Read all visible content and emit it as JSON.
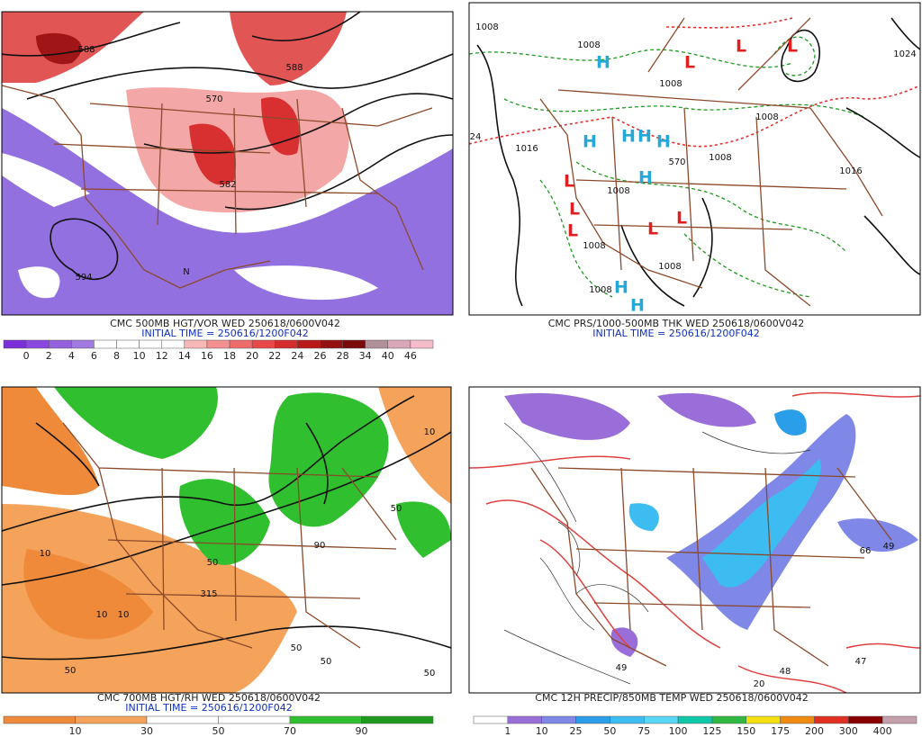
{
  "panels": [
    {
      "caption": "CMC 500MB HGT/VOR WED 250618/0600V042",
      "initial_time": "INITIAL TIME = 250616/1200F042",
      "colorbar": {
        "labels": [
          0,
          2,
          4,
          6,
          8,
          10,
          12,
          14,
          16,
          18,
          20,
          22,
          24,
          26,
          28,
          34,
          40,
          46
        ],
        "colors": [
          "#7b2fd9",
          "#8a48e0",
          "#9560dd",
          "#a079e0",
          "#ffffff",
          "#ffffff",
          "#ffffff",
          "#ffffff",
          "#f9b8b8",
          "#f49090",
          "#ee6c6c",
          "#e84848",
          "#d42c2c",
          "#b81818",
          "#951010",
          "#7a0a0a",
          "#b09098",
          "#d8a8b8",
          "#f5bccb"
        ]
      },
      "map_labels": [
        "588",
        "588",
        "570",
        "582",
        "594",
        "N"
      ]
    },
    {
      "caption": "CMC PRS/1000-500MB THK WED 250618/0600V042",
      "initial_time": "INITIAL TIME = 250616/1200F042",
      "map_labels": [
        "1008",
        "1008",
        "1024",
        "1008",
        "1008",
        "1016",
        "1008",
        "1016",
        "1008",
        "1008",
        "1008",
        "1008",
        "570",
        "24",
        "H",
        "H",
        "H",
        "H",
        "H",
        "H",
        "H",
        "H",
        "L",
        "L",
        "L",
        "L",
        "L",
        "L",
        "L",
        "L"
      ]
    },
    {
      "caption": "CMC 700MB HGT/RH WED 250618/0600V042",
      "initial_time": "INITIAL TIME = 250616/1200F042",
      "colorbar": {
        "labels": [
          10,
          30,
          50,
          70,
          90
        ],
        "colors": [
          "#ee8a3a",
          "#f5a25a",
          "#ffffff",
          "#ffffff",
          "#2fbf2f",
          "#1f9a1f"
        ]
      },
      "map_labels": [
        "10",
        "10",
        "10",
        "50",
        "50",
        "315",
        "50",
        "50",
        "90",
        "10",
        "50",
        "50"
      ]
    },
    {
      "caption": "CMC 12H PRECIP/850MB TEMP WED 250618/0600V042",
      "colorbar": {
        "labels": [
          1,
          10,
          25,
          50,
          75,
          100,
          125,
          150,
          175,
          200,
          300,
          400
        ],
        "colors": [
          "#ffffff",
          "#9a6ed8",
          "#7f88e6",
          "#2a9ee8",
          "#3cbcf0",
          "#5ad6f8",
          "#10c8a8",
          "#30b840",
          "#f2e010",
          "#f08a10",
          "#e03020",
          "#8a0000",
          "#c4a0ac"
        ]
      },
      "map_labels": [
        "66",
        "49",
        "48",
        "47",
        "49",
        "20"
      ]
    }
  ]
}
